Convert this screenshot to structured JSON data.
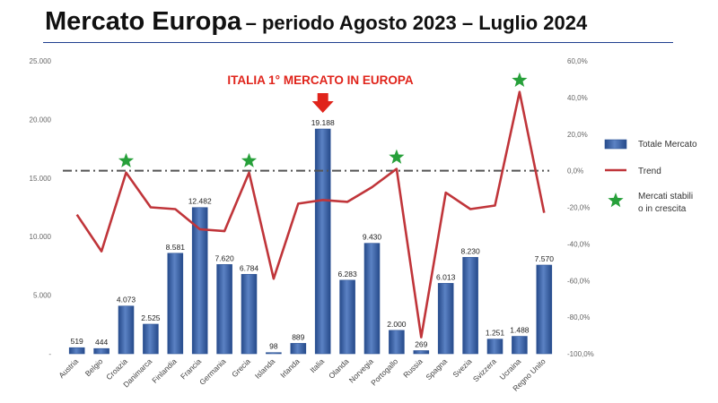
{
  "slide": {
    "title": "Mercato Europa",
    "subtitle": "– periodo Agosto 2023 – Luglio 2024"
  },
  "chart_data": {
    "type": "bar",
    "categories": [
      "Austria",
      "Belgio",
      "Croazia",
      "Danimarca",
      "Finlandia",
      "Francia",
      "Germania",
      "Grecia",
      "Islanda",
      "Irlanda",
      "Italia",
      "Olanda",
      "Norvegia",
      "Portogallo",
      "Russia",
      "Spagna",
      "Svezia",
      "Svizzera",
      "Ucraina",
      "Regno Unito"
    ],
    "series": [
      {
        "name": "Totale Mercato",
        "axis": "left",
        "kind": "bar",
        "values": [
          519,
          444,
          4073,
          2525,
          8581,
          12482,
          7620,
          6784,
          98,
          889,
          19188,
          6283,
          9430,
          2000,
          269,
          6013,
          8230,
          1251,
          1488,
          7570
        ],
        "labels": [
          "519",
          "444",
          "4.073",
          "2.525",
          "8.581",
          "12.482",
          "7.620",
          "6.784",
          "98",
          "889",
          "19.188",
          "6.283",
          "9.430",
          "2.000",
          "269",
          "6.013",
          "8.230",
          "1.251",
          "1.488",
          "7.570"
        ]
      },
      {
        "name": "Trend",
        "axis": "right",
        "kind": "line",
        "values": [
          -24,
          -44,
          -1,
          -20,
          -21,
          -32,
          -33,
          -1,
          -59,
          -18,
          -16,
          -17,
          -9,
          1,
          -91,
          -12,
          -21,
          -19,
          43,
          -23
        ]
      },
      {
        "name": "Mercati stabili o in crescita",
        "kind": "marker",
        "categories": [
          "Croazia",
          "Grecia",
          "Portogallo",
          "Ucraina"
        ]
      }
    ],
    "left_axis": {
      "min": 0,
      "max": 25000,
      "ticks": [
        "-",
        "5.000",
        "10.000",
        "15.000",
        "20.000",
        "25.000"
      ]
    },
    "right_axis": {
      "min": -100,
      "max": 60,
      "ticks": [
        "-100,0%",
        "-80,0%",
        "-60,0%",
        "-40,0%",
        "-20,0%",
        "0,0%",
        "20,0%",
        "40,0%",
        "60,0%"
      ]
    },
    "reference_line": {
      "axis": "right",
      "value": 0
    },
    "annotation": {
      "text": "ITALIA 1°  MERCATO IN EUROPA",
      "category": "Italia"
    },
    "legend": {
      "position": "right",
      "items": [
        "Totale Mercato",
        "Trend",
        "Mercati stabili",
        "o in crescita"
      ]
    },
    "colors": {
      "bar": "#2f5597",
      "bar_light": "#5b82c4",
      "line": "#c0353a",
      "star": "#27a03a",
      "arrow": "#e0241b",
      "reference": "#555555"
    }
  }
}
